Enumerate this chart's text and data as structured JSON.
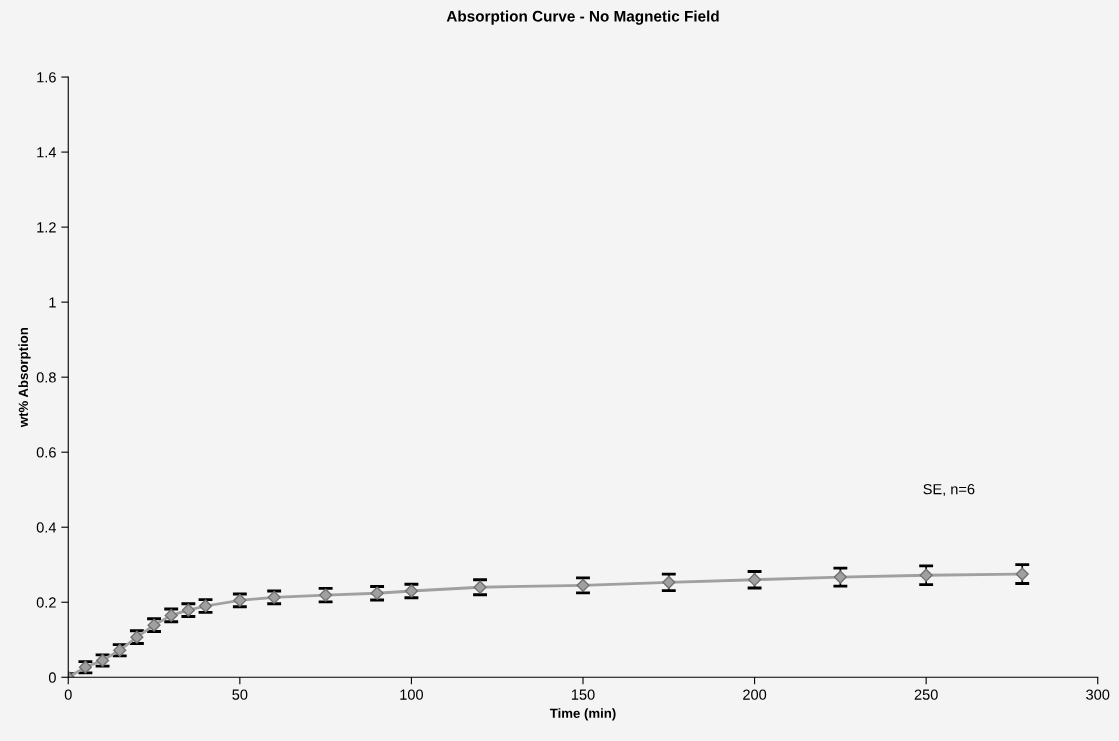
{
  "chart_data": {
    "type": "line",
    "title": "Absorption Curve - No Magnetic Field",
    "xlabel": "Time (min)",
    "ylabel": "wt% Absorption",
    "x": [
      0,
      5,
      10,
      15,
      20,
      25,
      30,
      35,
      40,
      50,
      60,
      75,
      90,
      100,
      120,
      150,
      175,
      200,
      225,
      250,
      278
    ],
    "series": [
      {
        "color": "#a0a0a0",
        "marker": "diamond",
        "values": [
          0.0,
          0.027,
          0.045,
          0.072,
          0.107,
          0.139,
          0.165,
          0.179,
          0.19,
          0.205,
          0.213,
          0.219,
          0.224,
          0.23,
          0.24,
          0.245,
          0.253,
          0.26,
          0.267,
          0.272,
          0.275
        ],
        "errors": [
          0.01,
          0.015,
          0.015,
          0.015,
          0.017,
          0.017,
          0.017,
          0.017,
          0.017,
          0.017,
          0.017,
          0.018,
          0.018,
          0.018,
          0.02,
          0.02,
          0.022,
          0.022,
          0.024,
          0.025,
          0.025
        ]
      }
    ],
    "xlim": [
      0,
      300
    ],
    "xticks": [
      0,
      50,
      100,
      150,
      200,
      250,
      300
    ],
    "ylim": [
      0,
      1.6
    ],
    "yticks": [
      0,
      0.2,
      0.4,
      0.6,
      0.8,
      1,
      1.2,
      1.4,
      1.6
    ],
    "annotations": [
      "SE, n=6"
    ],
    "grid": false,
    "legend": false
  }
}
